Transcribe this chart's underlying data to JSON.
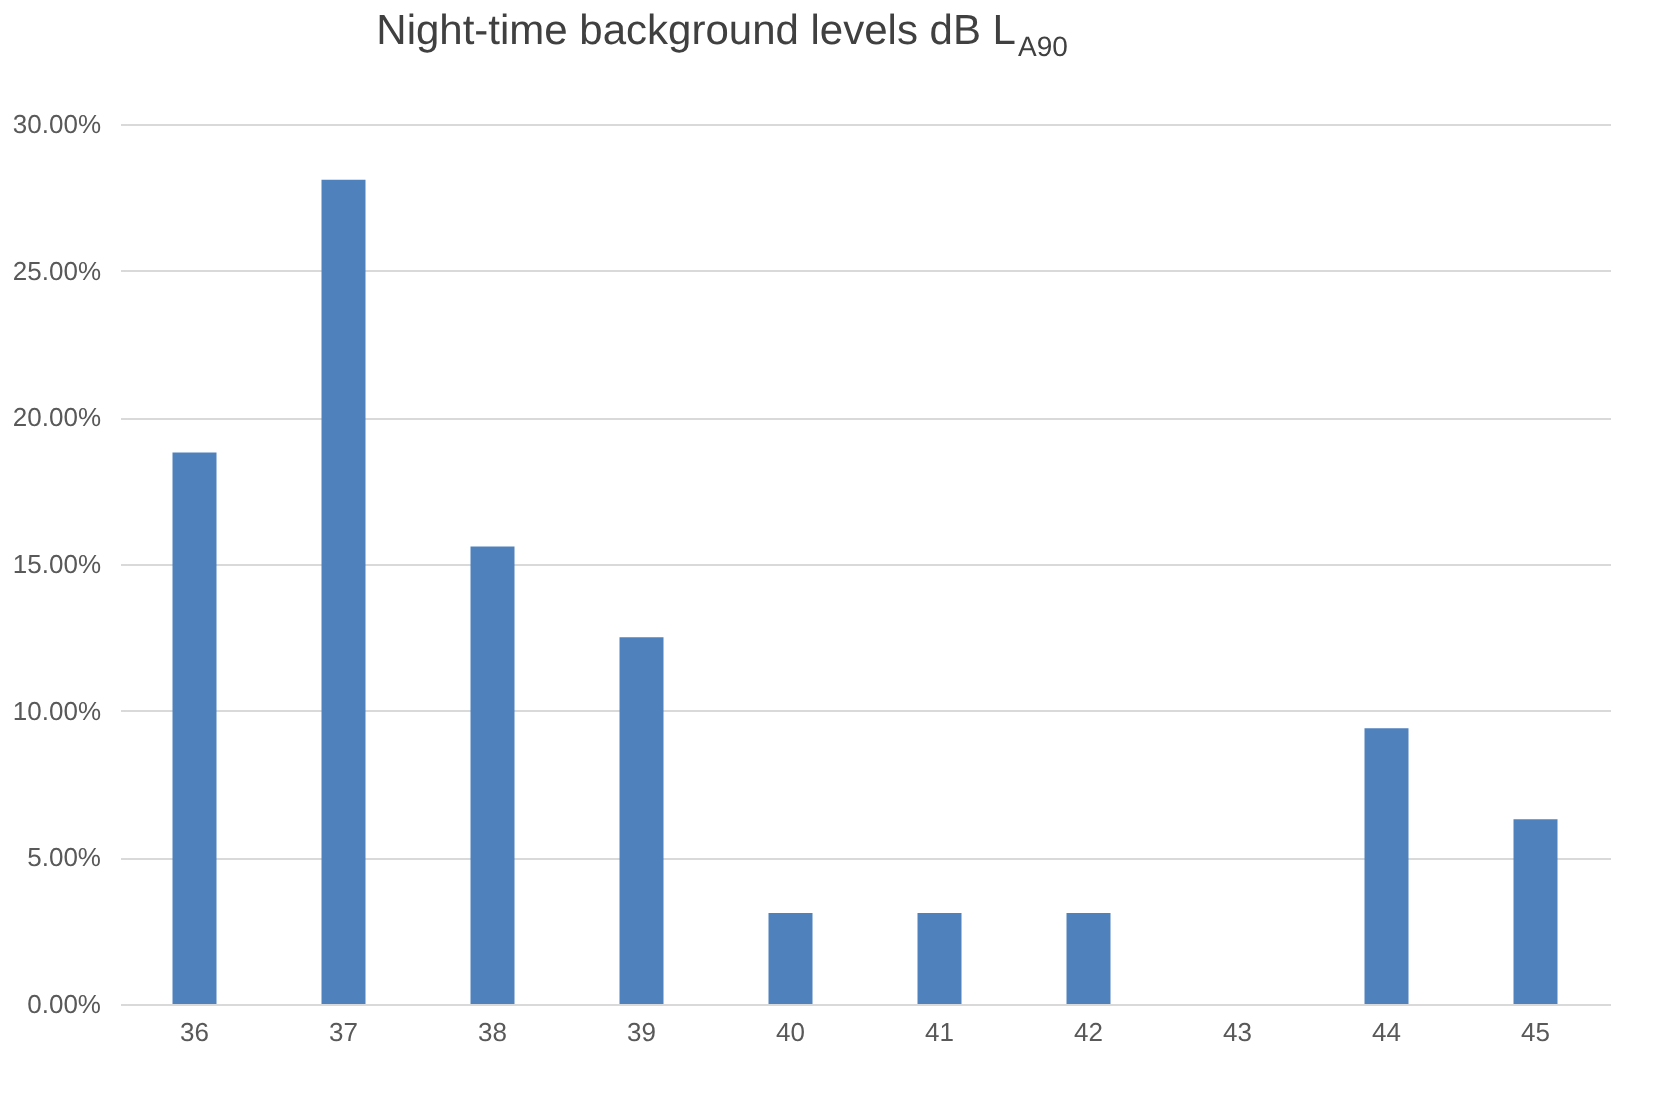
{
  "chart_data": {
    "type": "bar",
    "title": "Night-time background levels dB L$_{A90}$",
    "categories": [
      "36",
      "37",
      "38",
      "39",
      "40",
      "41",
      "42",
      "43",
      "44",
      "45"
    ],
    "values": [
      18.8,
      28.1,
      15.6,
      12.5,
      3.1,
      3.1,
      3.1,
      0,
      9.4,
      6.3
    ],
    "color": "#4f81bd",
    "ylim": [
      0,
      30
    ],
    "yticks": [
      {
        "value": 0,
        "label": "0.00%"
      },
      {
        "value": 5,
        "label": "5.00%"
      },
      {
        "value": 10,
        "label": "10.00%"
      },
      {
        "value": 15,
        "label": "15.00%"
      },
      {
        "value": 20,
        "label": "20.00%"
      },
      {
        "value": 25,
        "label": "25.00%"
      },
      {
        "value": 30,
        "label": "30.00%"
      }
    ],
    "grid": "y"
  }
}
